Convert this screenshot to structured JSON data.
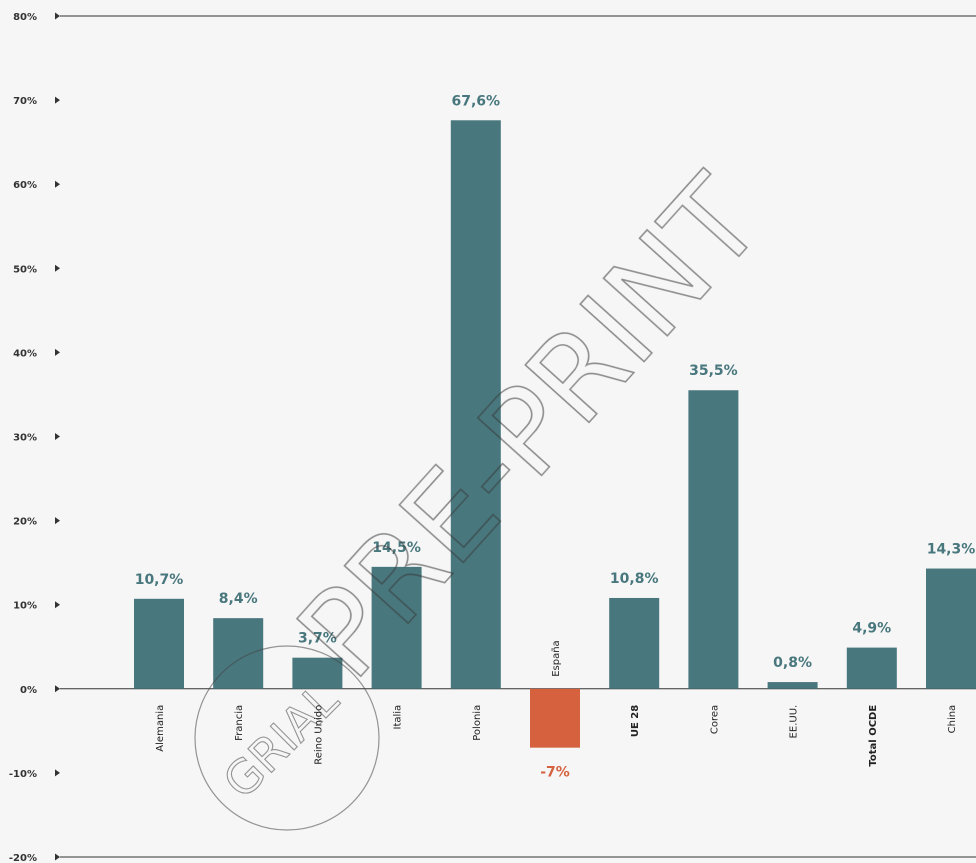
{
  "chart_data": {
    "type": "bar",
    "categories": [
      "Alemania",
      "Francia",
      "Reino Unido",
      "Italia",
      "Polonia",
      "España",
      "UE 28",
      "Corea",
      "EE.UU.",
      "Total OCDE",
      "China"
    ],
    "values": [
      10.7,
      8.4,
      3.7,
      14.5,
      67.6,
      -7,
      10.8,
      35.5,
      0.8,
      4.9,
      14.3
    ],
    "value_labels": [
      "10,7%",
      "8,4%",
      "3,7%",
      "14,5%",
      "67,6%",
      "-7%",
      "10,8%",
      "35,5%",
      "0,8%",
      "4,9%",
      "14,3%"
    ],
    "bold_categories": [
      "UE 28",
      "Total OCDE"
    ],
    "highlight_categories": [
      "España"
    ],
    "ylim": [
      -20,
      80
    ],
    "yticks": [
      -20,
      -10,
      0,
      10,
      20,
      30,
      40,
      50,
      60,
      70,
      80
    ],
    "ytick_labels": [
      "-20%",
      "-10%",
      "0%",
      "10%",
      "20%",
      "30%",
      "40%",
      "50%",
      "60%",
      "70%",
      "80%"
    ],
    "grid": false,
    "colors": {
      "bar": "#48777d",
      "highlight_bar": "#d6613f",
      "label": "#48777d",
      "highlight_label": "#d6613f",
      "axis": "#333333"
    }
  },
  "watermark": {
    "text": "PRE-PRINT",
    "stamp_text": "GRIAL"
  }
}
